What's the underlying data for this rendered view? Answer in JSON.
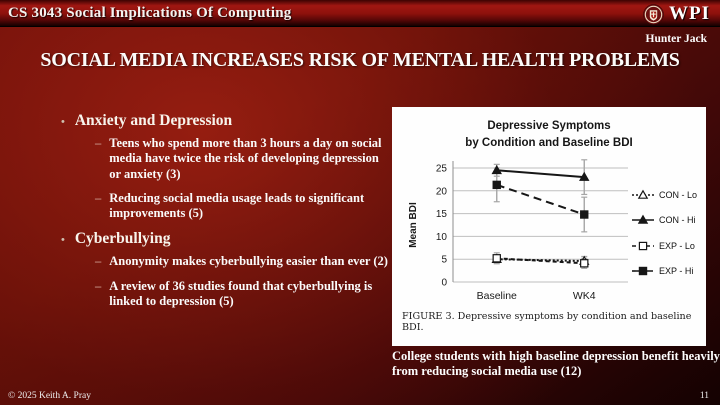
{
  "header": {
    "course_title": "CS 3043 Social Implications Of Computing",
    "logo_text": "WPI",
    "author": "Hunter Jack"
  },
  "slide": {
    "title": "SOCIAL MEDIA INCREASES RISK OF MENTAL HEALTH PROBLEMS"
  },
  "markers": {
    "level1": "•",
    "level2": "–"
  },
  "bullets": [
    {
      "label": "Anxiety and Depression",
      "sub": [
        "Teens who spend more than 3 hours a day on social media have twice the risk of developing depression or anxiety (3)",
        "Reducing social media usage leads to significant improvements (5)"
      ]
    },
    {
      "label": "Cyberbullying",
      "sub": [
        "Anonymity makes cyberbullying easier than ever (2)",
        "A review of 36 studies found that cyberbullying is linked to depression (5)"
      ]
    }
  ],
  "chart_data": {
    "type": "line",
    "title": "Depressive Symptoms by Condition and Baseline BDI",
    "title_lines": [
      "Depressive Symptoms",
      "by Condition and Baseline BDI"
    ],
    "categories": [
      "Baseline",
      "WK4"
    ],
    "xlabel": "",
    "ylabel": "Mean BDI",
    "ylim": [
      0,
      25
    ],
    "yticks": [
      0,
      5,
      10,
      15,
      20,
      25
    ],
    "grid": true,
    "legend_position": "right",
    "series": [
      {
        "name": "CON - Lo",
        "values": [
          5.0,
          4.6
        ],
        "errors": [
          0.8,
          1.0
        ],
        "marker": "triangle-open",
        "line": "dotted"
      },
      {
        "name": "CON - Hi",
        "values": [
          24.5,
          23.0
        ],
        "errors": [
          1.3,
          3.8
        ],
        "marker": "triangle-filled",
        "line": "solid"
      },
      {
        "name": "EXP - Lo",
        "values": [
          5.2,
          4.1
        ],
        "errors": [
          1.2,
          1.1
        ],
        "marker": "square-open",
        "line": "dashed"
      },
      {
        "name": "EXP - Hi",
        "values": [
          21.3,
          14.8
        ],
        "errors": [
          3.7,
          3.8
        ],
        "marker": "square-filled",
        "line": "longdash"
      }
    ]
  },
  "figure": {
    "caption": "FIGURE 3. Depressive symptoms by condition and baseline BDI.",
    "note": "College students with high baseline depression benefit heavily from reducing social media use (12)"
  },
  "footer": {
    "copyright": "© 2025 Keith A. Pray",
    "page_number": "11"
  },
  "colors": {
    "background_red": "#6e100a",
    "header_red": "#a01712",
    "panel_white": "#fefefe",
    "text_white": "#ffffff",
    "chart_line": "#161616",
    "error_bar_gray": "#a6a6a6"
  }
}
